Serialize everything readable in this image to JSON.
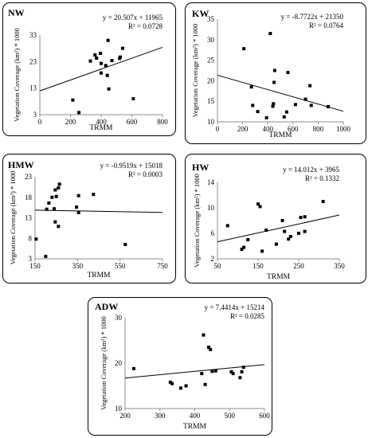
{
  "chart_data": [
    {
      "type": "scatter",
      "title": "NW",
      "equation": "y = 20.507x + 11965",
      "r2": "R² = 0.0728",
      "xlabel": "TRMM",
      "ylabel": "Vegetation Coverage (km²) * 1000",
      "xlim": [
        0,
        800
      ],
      "ylim": [
        3,
        33
      ],
      "xticks": [
        "0",
        "200",
        "400",
        "600",
        "800"
      ],
      "yticks": [
        "3",
        "13",
        "23",
        "33"
      ],
      "trend": {
        "slope": 0.020507,
        "intercept": 11.965
      },
      "x": [
        215,
        255,
        330,
        360,
        370,
        395,
        400,
        400,
        430,
        440,
        445,
        450,
        470,
        520,
        525,
        540,
        610
      ],
      "y": [
        8.5,
        3.8,
        23.2,
        25.5,
        24.3,
        26.1,
        22.3,
        18.7,
        21.5,
        17.8,
        31,
        12.7,
        23.4,
        24.2,
        24.7,
        28,
        9
      ]
    },
    {
      "type": "scatter",
      "title": "KW",
      "equation": "y = -8.7722x + 21350",
      "r2": "R² = 0.0764",
      "xlabel": "TRMM",
      "ylabel": "Vegetation Coverage (km²) * 1000",
      "xlim": [
        0,
        1000
      ],
      "ylim": [
        10,
        35
      ],
      "xticks": [
        "0",
        "200",
        "400",
        "600",
        "800",
        "1000"
      ],
      "yticks": [
        "10",
        "15",
        "20",
        "25",
        "30",
        "35"
      ],
      "trend": {
        "slope": -0.0087722,
        "intercept": 21.35
      },
      "x": [
        210,
        270,
        280,
        320,
        390,
        420,
        440,
        445,
        450,
        455,
        530,
        550,
        560,
        620,
        700,
        735,
        745,
        880
      ],
      "y": [
        27.8,
        18.5,
        14,
        12.5,
        11,
        31.5,
        13.8,
        14.4,
        19.6,
        22.5,
        11.2,
        12.4,
        22,
        14.2,
        15.5,
        18.8,
        14,
        13.7
      ]
    },
    {
      "type": "scatter",
      "title": "HMW",
      "equation": "y = -0.9519x + 15018",
      "r2": "R² = 0.0003",
      "xlabel": "TRMM",
      "ylabel": "Vegetation Coverage (km²) * 1000",
      "xlim": [
        150,
        750
      ],
      "ylim": [
        3,
        23
      ],
      "xticks": [
        "150",
        "350",
        "550",
        "750"
      ],
      "yticks": [
        "3",
        "8",
        "13",
        "18",
        "23"
      ],
      "trend": {
        "slope": -0.0009519,
        "intercept": 15.018
      },
      "x": [
        155,
        200,
        205,
        215,
        230,
        240,
        245,
        245,
        250,
        260,
        260,
        265,
        345,
        355,
        355,
        425,
        575
      ],
      "y": [
        7.8,
        3.6,
        15.1,
        16.6,
        18,
        15.2,
        12,
        19.8,
        18.2,
        10.9,
        20.3,
        21.2,
        15.6,
        18.4,
        14.3,
        18.7,
        6.5
      ]
    },
    {
      "type": "scatter",
      "title": "HW",
      "equation": "y = 14.012x + 3965",
      "r2": "R² = 0.1332",
      "xlabel": "TRMM",
      "ylabel": "Vegetation Coverage (km²) * 1000",
      "xlim": [
        50,
        350
      ],
      "ylim": [
        2,
        14
      ],
      "xticks": [
        "50",
        "150",
        "250",
        "350"
      ],
      "yticks": [
        "2",
        "6",
        "10",
        "14"
      ],
      "trend": {
        "slope": 0.014012,
        "intercept": 3.965
      },
      "x": [
        75,
        110,
        115,
        125,
        150,
        155,
        160,
        170,
        195,
        210,
        215,
        225,
        230,
        250,
        255,
        265,
        265,
        310
      ],
      "y": [
        7.2,
        3.5,
        3.8,
        5,
        10.6,
        10.2,
        3.2,
        6.5,
        4.3,
        8,
        6.3,
        5.1,
        5.5,
        6,
        8.5,
        6.3,
        8.6,
        11
      ]
    },
    {
      "type": "scatter",
      "title": "ADW",
      "equation": "y = 7.4414x + 15214",
      "r2": "R² = 0.0285",
      "xlabel": "TRMM",
      "ylabel": "Vegetation Coverage (km²) * 1000",
      "xlim": [
        200,
        600
      ],
      "ylim": [
        10,
        30
      ],
      "xticks": [
        "200",
        "300",
        "400",
        "500",
        "600"
      ],
      "yticks": [
        "10",
        "20",
        "30"
      ],
      "trend": {
        "slope": 0.0074414,
        "intercept": 15.214
      },
      "x": [
        225,
        330,
        335,
        360,
        375,
        420,
        425,
        430,
        440,
        445,
        450,
        460,
        505,
        510,
        530,
        535,
        540
      ],
      "y": [
        18.8,
        15.8,
        15.5,
        14.5,
        15,
        17.7,
        26.2,
        15.3,
        23.5,
        23,
        18.2,
        18.3,
        18.1,
        17.7,
        16.8,
        18.1,
        19.1
      ]
    }
  ]
}
